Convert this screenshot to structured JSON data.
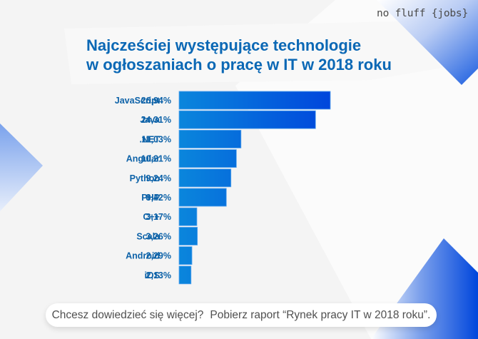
{
  "brand": {
    "logo_text": "no fluff {jobs}"
  },
  "colors": {
    "background": "#f4f4f4",
    "title": "#0b68b5",
    "labels": "#0d62a8",
    "bar_start": "#0a86dc",
    "bar_end": "#0046dc",
    "accent_shape": "#1d5fe0"
  },
  "chart_data": {
    "type": "bar",
    "orientation": "horizontal",
    "title": "Najcześciej występujące technologie w ogłoszaniach o pracę w IT w 2018 roku",
    "title_lines": [
      "Najcześciej występujące technologie",
      "w ogłoszaniach o pracę w IT w 2018 roku"
    ],
    "xlabel": "",
    "ylabel": "",
    "unit": "%",
    "grid": false,
    "legend": "none",
    "categories": [
      "JavaScript",
      "Java",
      ".NET",
      "Angular",
      "Python",
      "PHP",
      "C++",
      "Scala",
      "Android",
      "iOS"
    ],
    "values": [
      26.94,
      24.31,
      11.03,
      10.21,
      9.24,
      8.42,
      3.17,
      3.26,
      2.29,
      2.13
    ],
    "value_labels": [
      "26,94%",
      "24,31%",
      "11,03%",
      "10,21%",
      "9,24%",
      "8,42%",
      "3,17%",
      "3,26%",
      "2,29%",
      "2,13%"
    ],
    "xlim": [
      0,
      26.94
    ]
  },
  "footer": {
    "question": "Chcesz dowiedzieć się więcej?",
    "cta": "Pobierz raport “Rynek pracy IT w 2018 roku”."
  }
}
